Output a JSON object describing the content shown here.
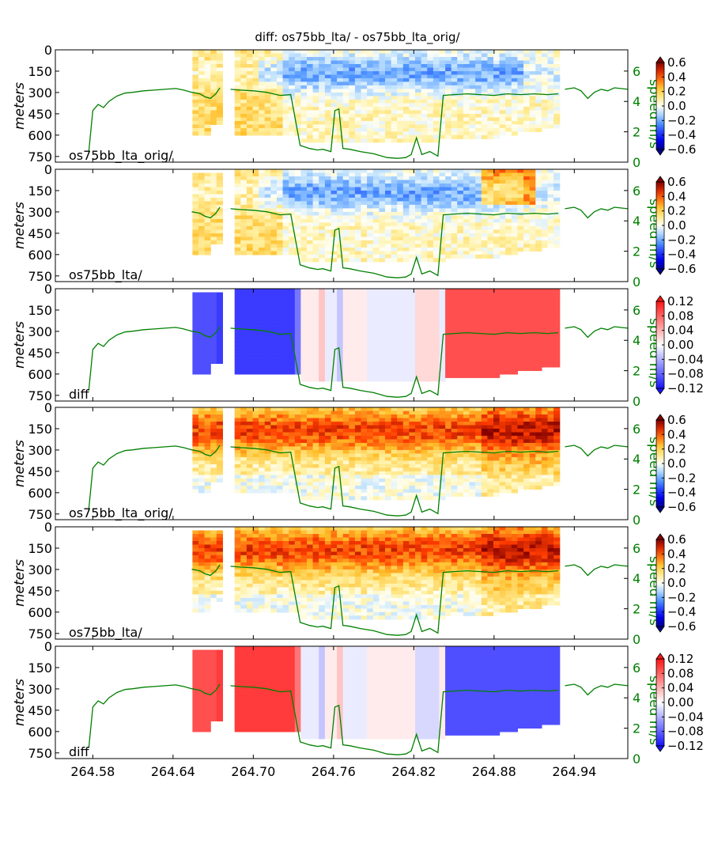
{
  "chart_data": {
    "type": "heatmap",
    "title": "diff: os75bb_lta/ - os75bb_lta_orig/",
    "x_ticks": [
      "264.58",
      "264.64",
      "264.70",
      "264.76",
      "264.82",
      "264.88",
      "264.94"
    ],
    "x_tick_values": [
      264.58,
      264.64,
      264.7,
      264.76,
      264.82,
      264.88,
      264.94
    ],
    "xlim": [
      264.552,
      264.98
    ],
    "y_label": "meters",
    "y_ticks": [
      "0",
      "150",
      "300",
      "450",
      "600",
      "750"
    ],
    "y_tick_values": [
      0,
      150,
      300,
      450,
      600,
      750
    ],
    "ylim": [
      0,
      790
    ],
    "speed_label": "speed m/s",
    "speed_ticks": [
      "0",
      "2",
      "4",
      "6"
    ],
    "speed_tick_values": [
      0,
      2,
      4,
      6
    ],
    "speed_lim": [
      0,
      7.4
    ],
    "speed_color": "#008000",
    "speed_track": {
      "x": [
        264.577,
        264.58,
        264.584,
        264.588,
        264.592,
        264.598,
        264.604,
        264.61,
        264.618,
        264.626,
        264.634,
        264.642,
        264.648,
        264.654,
        264.66,
        264.664,
        264.668,
        264.672,
        264.675
      ],
      "y": [
        0.7,
        3.4,
        3.8,
        3.6,
        4.0,
        4.35,
        4.55,
        4.6,
        4.7,
        4.75,
        4.8,
        4.85,
        4.75,
        4.6,
        4.5,
        4.3,
        4.2,
        4.5,
        4.9
      ]
    },
    "speed_track_b": {
      "x": [
        264.683,
        264.69,
        264.7,
        264.71,
        264.72,
        264.728,
        264.735,
        264.742,
        264.748,
        264.752,
        264.758,
        264.761,
        264.764,
        264.767,
        264.772,
        264.78,
        264.79,
        264.8,
        264.808,
        264.814,
        264.818,
        264.822,
        264.826,
        264.832,
        264.838,
        264.842,
        264.85,
        264.86,
        264.87,
        264.88,
        264.89,
        264.9,
        264.91,
        264.92,
        264.928
      ],
      "y": [
        4.8,
        4.75,
        4.7,
        4.6,
        4.4,
        4.45,
        1.1,
        0.9,
        0.8,
        0.85,
        0.7,
        3.4,
        3.5,
        0.9,
        0.85,
        0.7,
        0.55,
        0.3,
        0.25,
        0.3,
        0.5,
        1.6,
        0.5,
        0.7,
        0.4,
        4.4,
        4.45,
        4.5,
        4.45,
        4.4,
        4.5,
        4.45,
        4.5,
        4.45,
        4.5
      ]
    },
    "speed_track_c": {
      "x": [
        264.933,
        264.94,
        264.945,
        264.95,
        264.955,
        264.96,
        264.965,
        264.97,
        264.98
      ],
      "y": [
        4.8,
        4.9,
        4.7,
        4.2,
        4.6,
        4.8,
        4.7,
        4.9,
        4.8
      ]
    },
    "panels": [
      {
        "label": "os75bb_lta_orig/",
        "mode": "u_orig",
        "cb_ticks": [
          "0.6",
          "0.4",
          "0.2",
          "0.0",
          "−0.2",
          "−0.4",
          "−0.6"
        ],
        "cb_values": [
          0.6,
          0.4,
          0.2,
          0.0,
          -0.2,
          -0.4,
          -0.6
        ],
        "range": [
          -0.6,
          0.6
        ]
      },
      {
        "label": "os75bb_lta/",
        "mode": "u_new",
        "cb_ticks": [
          "0.6",
          "0.4",
          "0.2",
          "0.0",
          "−0.2",
          "−0.4",
          "−0.6"
        ],
        "cb_values": [
          0.6,
          0.4,
          0.2,
          0.0,
          -0.2,
          -0.4,
          -0.6
        ],
        "range": [
          -0.6,
          0.6
        ]
      },
      {
        "label": "diff",
        "mode": "u_diff",
        "cb_ticks": [
          "0.12",
          "0.08",
          "0.04",
          "0.00",
          "−0.04",
          "−0.08",
          "−0.12"
        ],
        "cb_values": [
          0.12,
          0.08,
          0.04,
          0.0,
          -0.04,
          -0.08,
          -0.12
        ],
        "range": [
          -0.12,
          0.12
        ]
      },
      {
        "label": "os75bb_lta_orig/",
        "mode": "v_orig",
        "cb_ticks": [
          "0.6",
          "0.4",
          "0.2",
          "0.0",
          "−0.2",
          "−0.4",
          "−0.6"
        ],
        "cb_values": [
          0.6,
          0.4,
          0.2,
          0.0,
          -0.2,
          -0.4,
          -0.6
        ],
        "range": [
          -0.6,
          0.6
        ]
      },
      {
        "label": "os75bb_lta/",
        "mode": "v_new",
        "cb_ticks": [
          "0.6",
          "0.4",
          "0.2",
          "0.0",
          "−0.2",
          "−0.4",
          "−0.6"
        ],
        "cb_values": [
          0.6,
          0.4,
          0.2,
          0.0,
          -0.2,
          -0.4,
          -0.6
        ],
        "range": [
          -0.6,
          0.6
        ]
      },
      {
        "label": "diff",
        "mode": "v_diff",
        "cb_ticks": [
          "0.12",
          "0.08",
          "0.04",
          "0.00",
          "−0.04",
          "−0.08",
          "−0.12"
        ],
        "cb_values": [
          0.12,
          0.08,
          0.04,
          0.0,
          -0.04,
          -0.08,
          -0.12
        ],
        "range": [
          -0.12,
          0.12
        ]
      }
    ]
  }
}
